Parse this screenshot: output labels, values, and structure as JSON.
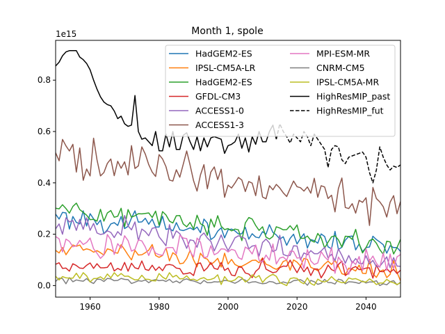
{
  "chart_data": {
    "type": "line",
    "title": "Month 1, spole",
    "xlabel": "",
    "ylabel": "",
    "y_offset_label": "1e15",
    "xlim": [
      1950,
      2050
    ],
    "ylim": [
      -0.045,
      0.955
    ],
    "xticks": [
      1960,
      1980,
      2000,
      2020,
      2040
    ],
    "yticks": [
      0.0,
      0.2,
      0.4,
      0.6,
      0.8
    ],
    "xtick_labels": [
      "1960",
      "1980",
      "2000",
      "2020",
      "2040"
    ],
    "ytick_labels": [
      "0.0",
      "0.2",
      "0.4",
      "0.6",
      "0.8"
    ],
    "grid": false,
    "legend_position": "top-right",
    "legend_columns": 2,
    "series": [
      {
        "name": "HadGEM2-ES",
        "color": "#1f77b4",
        "dash": "solid",
        "start": 1950,
        "end": 2050,
        "base": 0.27,
        "trend": -0.12,
        "noise": 0.025,
        "seed": 101
      },
      {
        "name": "IPSL-CM5A-LR",
        "color": "#ff7f0e",
        "dash": "solid",
        "start": 1950,
        "end": 2050,
        "base": 0.155,
        "trend": -0.1,
        "noise": 0.025,
        "seed": 202
      },
      {
        "name": "HadGEM2-ES",
        "color": "#2ca02c",
        "dash": "solid",
        "start": 1950,
        "end": 2050,
        "base": 0.305,
        "trend": -0.15,
        "noise": 0.025,
        "seed": 303
      },
      {
        "name": "GFDL-CM3",
        "color": "#d62728",
        "dash": "solid",
        "start": 1950,
        "end": 2050,
        "base": 0.075,
        "trend": -0.02,
        "noise": 0.02,
        "seed": 404
      },
      {
        "name": "ACCESS1-0",
        "color": "#9467bd",
        "dash": "solid",
        "start": 1950,
        "end": 2050,
        "base": 0.24,
        "trend": -0.15,
        "noise": 0.03,
        "seed": 505
      },
      {
        "name": "ACCESS1-3",
        "color": "#8c564b",
        "dash": "solid",
        "start": 1950,
        "end": 2050,
        "base": 0.52,
        "trend": -0.21,
        "noise": 0.05,
        "seed": 606
      },
      {
        "name": "MPI-ESM-MR",
        "color": "#e377c2",
        "dash": "solid",
        "start": 1950,
        "end": 2050,
        "base": 0.175,
        "trend": -0.09,
        "noise": 0.03,
        "seed": 707
      },
      {
        "name": "CNRM-CM5",
        "color": "#7f7f7f",
        "dash": "solid",
        "start": 1950,
        "end": 2050,
        "base": 0.02,
        "trend": -0.01,
        "noise": 0.008,
        "seed": 808
      },
      {
        "name": "IPSL-CM5A-MR",
        "color": "#bcbd22",
        "dash": "solid",
        "start": 1950,
        "end": 2050,
        "base": 0.035,
        "trend": -0.02,
        "noise": 0.012,
        "seed": 909
      },
      {
        "name": "HighResMIP_past",
        "color": "#000000",
        "dash": "solid",
        "x": [
          1950,
          1951,
          1952,
          1953,
          1954,
          1955,
          1956,
          1957,
          1958,
          1959,
          1960,
          1961,
          1962,
          1963,
          1964,
          1965,
          1966,
          1967,
          1968,
          1969,
          1970,
          1971,
          1972,
          1973,
          1974,
          1975,
          1976,
          1977,
          1978,
          1979,
          1980,
          1981,
          1982,
          1983,
          1984,
          1985,
          1986,
          1987,
          1988,
          1989,
          1990,
          1991,
          1992,
          1993,
          1994,
          1995,
          1996,
          1997,
          1998,
          1999,
          2000,
          2001,
          2002,
          2003,
          2004,
          2005,
          2006,
          2007,
          2008,
          2009,
          2010,
          2011,
          2012,
          2013,
          2014
        ],
        "y": [
          0.855,
          0.87,
          0.895,
          0.91,
          0.915,
          0.915,
          0.915,
          0.89,
          0.88,
          0.865,
          0.84,
          0.8,
          0.765,
          0.735,
          0.715,
          0.705,
          0.7,
          0.68,
          0.65,
          0.66,
          0.63,
          0.62,
          0.625,
          0.74,
          0.6,
          0.57,
          0.575,
          0.56,
          0.545,
          0.6,
          0.525,
          0.525,
          0.59,
          0.54,
          0.6,
          0.53,
          0.53,
          0.585,
          0.595,
          0.56,
          0.53,
          0.58,
          0.525,
          0.575,
          0.54,
          0.575,
          0.58,
          0.575,
          0.57,
          0.515,
          0.545,
          0.55,
          0.56,
          0.59,
          0.535,
          0.575,
          0.52,
          0.58,
          0.55,
          0.6,
          0.56,
          0.56,
          0.6,
          0.625,
          0.57
        ]
      },
      {
        "name": "HighResMIP_fut",
        "color": "#000000",
        "dash": "dashed",
        "x": [
          2014,
          2015,
          2016,
          2017,
          2018,
          2019,
          2020,
          2021,
          2022,
          2023,
          2024,
          2025,
          2026,
          2027,
          2028,
          2029,
          2030,
          2031,
          2032,
          2033,
          2034,
          2035,
          2036,
          2037,
          2038,
          2039,
          2040,
          2041,
          2042,
          2043,
          2044,
          2045,
          2046,
          2047,
          2048,
          2049,
          2050
        ],
        "y": [
          0.57,
          0.63,
          0.6,
          0.58,
          0.555,
          0.59,
          0.575,
          0.56,
          0.6,
          0.58,
          0.545,
          0.59,
          0.57,
          0.55,
          0.53,
          0.46,
          0.53,
          0.545,
          0.54,
          0.49,
          0.475,
          0.5,
          0.505,
          0.51,
          0.515,
          0.52,
          0.5,
          0.44,
          0.4,
          0.45,
          0.54,
          0.5,
          0.47,
          0.45,
          0.465,
          0.46,
          0.47
        ]
      }
    ]
  }
}
